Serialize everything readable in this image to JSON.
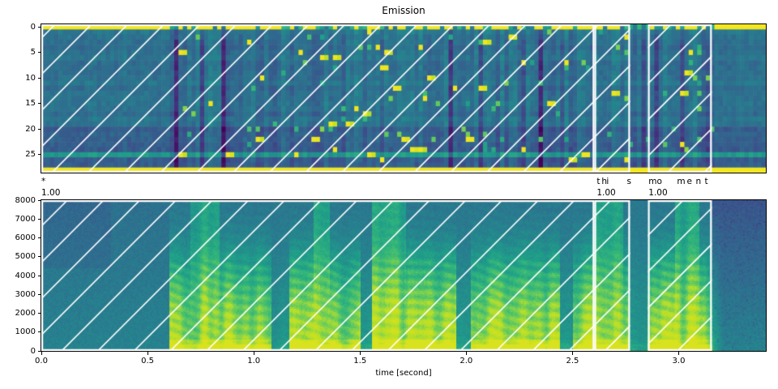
{
  "figure": {
    "background": "#ffffff"
  },
  "emission": {
    "title": "Emission"
  },
  "spectrogram": {
    "xlabel": "time [second]"
  },
  "alignment": {
    "words": [
      {
        "word": "*",
        "score": "1.00",
        "start": 0.0,
        "end": 2.603,
        "chars": [
          {
            "c": "*",
            "t": 0.0
          }
        ]
      },
      {
        "word": "this",
        "score": "1.00",
        "start": 2.603,
        "end": 2.771,
        "chars": [
          {
            "c": "t",
            "t": 2.614
          },
          {
            "c": "h",
            "t": 2.637
          },
          {
            "c": "i",
            "t": 2.66
          },
          {
            "c": "s",
            "t": 2.756
          }
        ]
      },
      {
        "word": "moment",
        "score": "1.00",
        "start": 2.855,
        "end": 3.156,
        "chars": [
          {
            "c": "m",
            "t": 2.858
          },
          {
            "c": "o",
            "t": 2.897
          },
          {
            "c": "m",
            "t": 2.992
          },
          {
            "c": "e",
            "t": 3.038
          },
          {
            "c": "n",
            "t": 3.08
          },
          {
            "c": "t",
            "t": 3.122
          }
        ]
      }
    ]
  },
  "style": {
    "axis_color": "#000000",
    "text_color": "#000000",
    "hatch_color": "#ffffff",
    "viridis": [
      [
        68,
        1,
        84
      ],
      [
        72,
        40,
        120
      ],
      [
        62,
        74,
        137
      ],
      [
        49,
        104,
        142
      ],
      [
        38,
        130,
        142
      ],
      [
        31,
        158,
        137
      ],
      [
        53,
        183,
        121
      ],
      [
        109,
        205,
        89
      ],
      [
        180,
        222,
        44
      ],
      [
        208,
        225,
        28
      ],
      [
        253,
        231,
        37
      ]
    ]
  },
  "chart_data": [
    {
      "type": "heatmap",
      "name": "emission-probabilities",
      "title": "Emission",
      "colormap": "viridis",
      "rows": 29,
      "frames": 169,
      "yticks": [
        0,
        5,
        10,
        15,
        20,
        25
      ],
      "blank_token_row": 0,
      "star_token_row": 28,
      "green_band_row": 25,
      "dark_rows": [
        20,
        21,
        22,
        23,
        24,
        26,
        27
      ],
      "speech_interval": [
        0.6,
        3.16
      ],
      "hatched_spans": [
        [
          0.0,
          2.603
        ],
        [
          2.603,
          2.771
        ],
        [
          2.855,
          3.156
        ]
      ]
    },
    {
      "type": "heatmap",
      "name": "spectrogram",
      "colormap": "viridis",
      "xlabel": "time [second]",
      "xticks": [
        0.0,
        0.5,
        1.0,
        1.5,
        2.0,
        2.5,
        3.0
      ],
      "yticks": [
        0,
        1000,
        2000,
        3000,
        4000,
        5000,
        6000,
        7000,
        8000
      ],
      "xlim": [
        0.0,
        3.41
      ],
      "ylim": [
        0,
        8000
      ],
      "grid": false,
      "speech_interval": [
        0.6,
        3.16
      ],
      "quiet_gaps": [
        [
          1.08,
          1.17
        ],
        [
          1.5,
          1.56
        ],
        [
          1.95,
          2.02
        ],
        [
          2.44,
          2.5
        ],
        [
          2.77,
          2.855
        ]
      ],
      "bright_high_freq_windows": [
        [
          0.7,
          0.84
        ],
        [
          1.28,
          1.36
        ],
        [
          1.56,
          1.72
        ],
        [
          2.6,
          2.74
        ],
        [
          2.98,
          3.1
        ]
      ],
      "hatched_spans": [
        [
          0.0,
          2.603
        ],
        [
          2.603,
          2.771
        ],
        [
          2.855,
          3.156
        ]
      ]
    }
  ]
}
